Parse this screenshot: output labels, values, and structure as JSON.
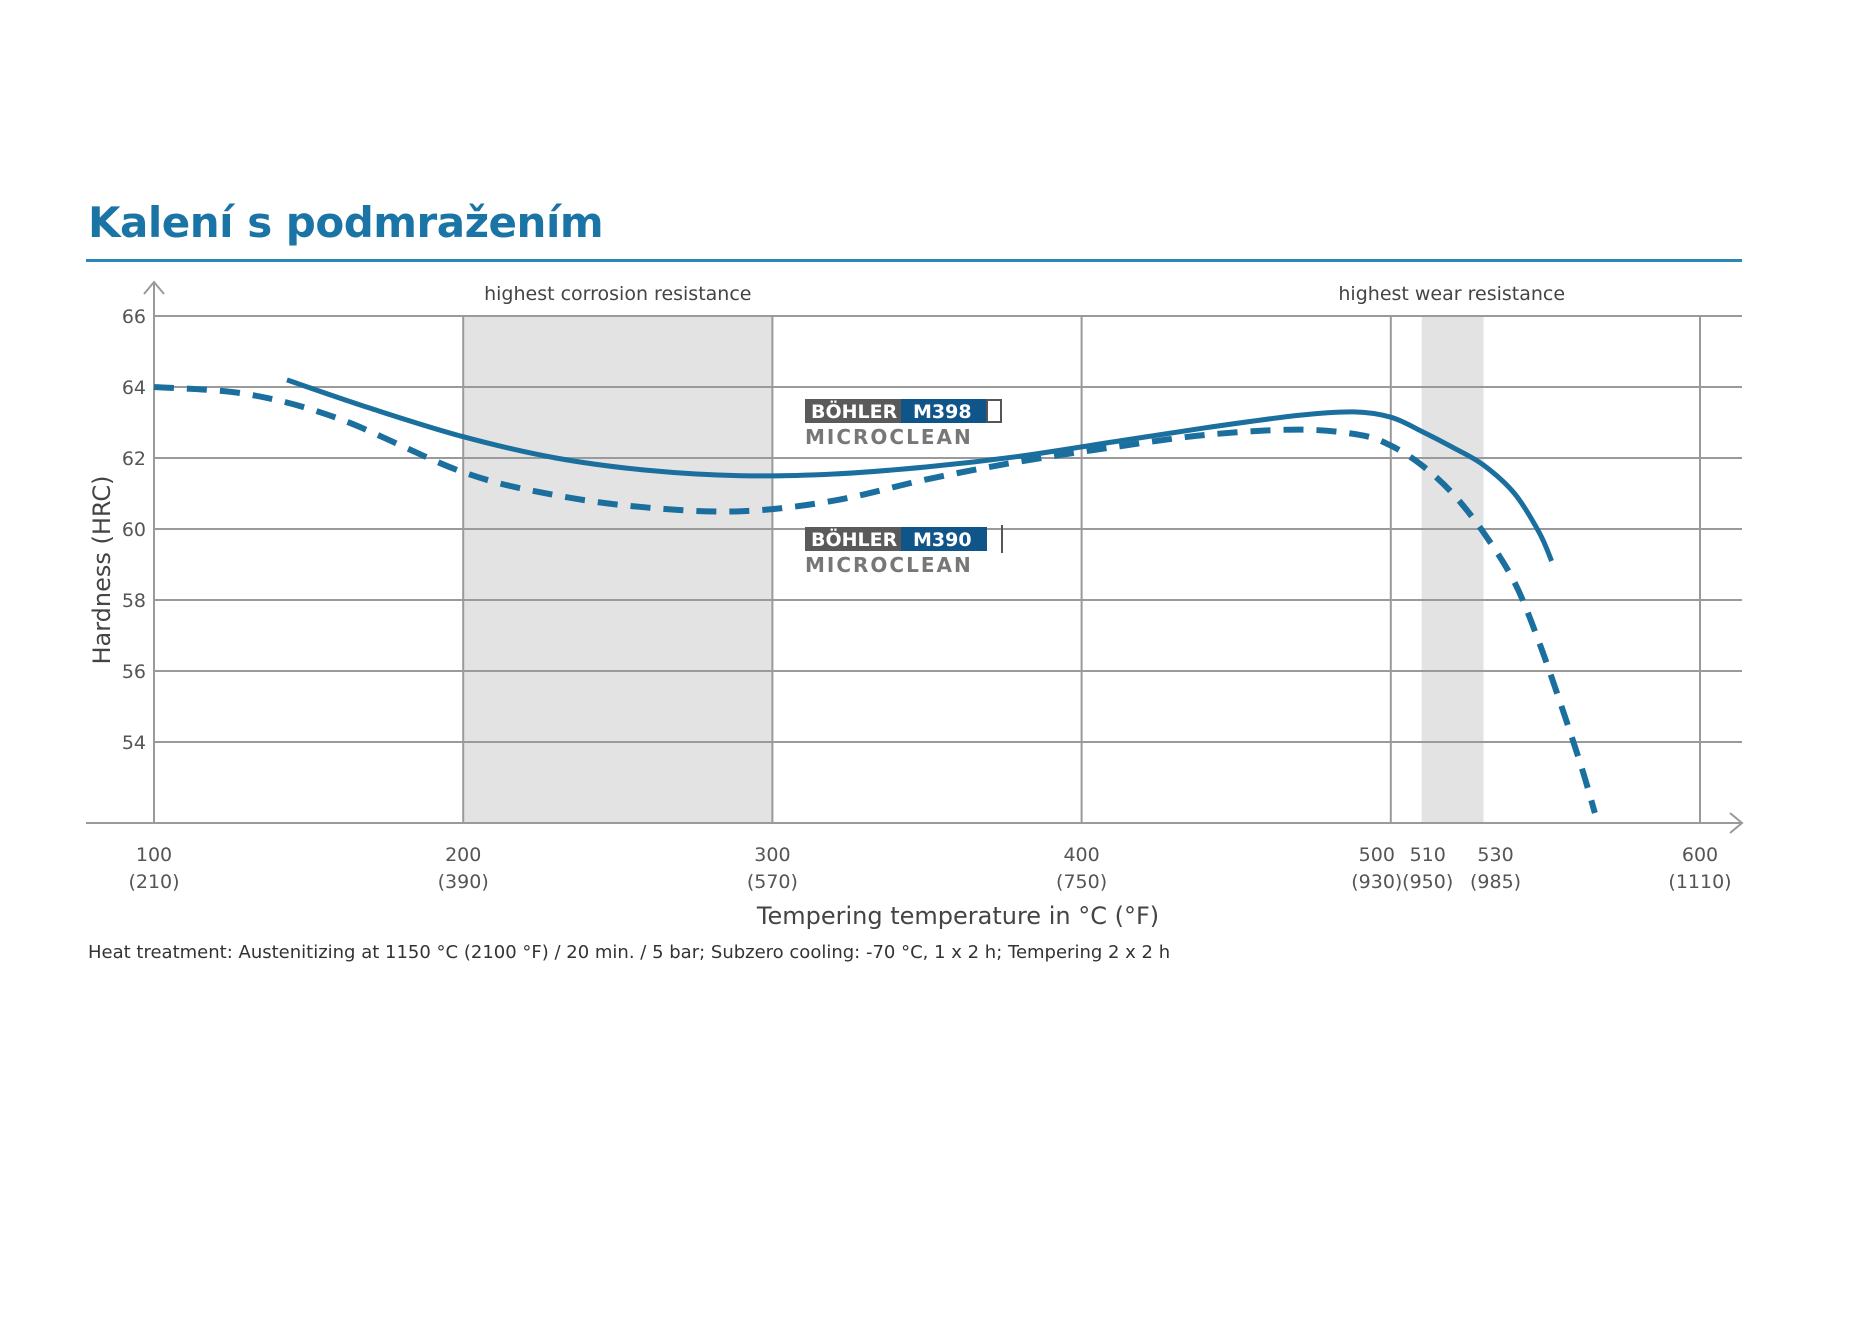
{
  "title": "Kalení s podmražením",
  "note": "Heat treatment: Austenitizing at 1150 °C (2100 °F) / 20 min. / 5 bar; Subzero cooling: -70 °C, 1 x 2 h; Tempering 2 x 2 h",
  "colors": {
    "title": "#1b74a6",
    "curve": "#1b6f9e",
    "band": "#e3e3e3",
    "grid": "#9a9a9a",
    "logo_gray": "#5a5a5a",
    "logo_blue": "#0f5589"
  },
  "chart_data": {
    "type": "line",
    "xlabel": "Tempering temperature in °C (°F)",
    "ylabel": "Hardness (HRC)",
    "xlim": [
      100,
      610
    ],
    "ylim": [
      52,
      66
    ],
    "grid": true,
    "x_ticks": [
      {
        "value": 100,
        "label": "100",
        "sub": "(210)"
      },
      {
        "value": 200,
        "label": "200",
        "sub": "(390)"
      },
      {
        "value": 300,
        "label": "300",
        "sub": "(570)"
      },
      {
        "value": 400,
        "label": "400",
        "sub": "(750)"
      },
      {
        "value": 500,
        "label": "500",
        "sub": "(930)"
      },
      {
        "value": 510,
        "label": "510",
        "sub": "(950)"
      },
      {
        "value": 530,
        "label": "530",
        "sub": "(985)"
      },
      {
        "value": 600,
        "label": "600",
        "sub": "(1110)"
      }
    ],
    "y_ticks": [
      54,
      56,
      58,
      60,
      62,
      64,
      66
    ],
    "bands": [
      {
        "from": 200,
        "to": 300,
        "label": "highest corrosion resistance"
      },
      {
        "from": 510,
        "to": 530,
        "label": "highest wear resistance"
      }
    ],
    "series": [
      {
        "name": "BÖHLER M398 MICROCLEAN",
        "style": "solid",
        "x": [
          143,
          170,
          200,
          230,
          260,
          290,
          320,
          350,
          380,
          410,
          440,
          470,
          488,
          500,
          510,
          520,
          530,
          540,
          548,
          552
        ],
        "y": [
          64.2,
          63.4,
          62.6,
          62.0,
          61.65,
          61.5,
          61.55,
          61.75,
          62.05,
          62.45,
          62.85,
          63.2,
          63.3,
          63.15,
          62.75,
          62.3,
          61.8,
          61.0,
          59.9,
          59.1
        ]
      },
      {
        "name": "BÖHLER M390 MICROCLEAN",
        "style": "dashed",
        "x": [
          100,
          130,
          160,
          200,
          230,
          260,
          290,
          320,
          350,
          380,
          410,
          440,
          470,
          490,
          500,
          510,
          520,
          530,
          540,
          548,
          556,
          562,
          566
        ],
        "y": [
          64.0,
          63.8,
          63.1,
          61.6,
          60.95,
          60.6,
          60.5,
          60.8,
          61.4,
          61.9,
          62.3,
          62.65,
          62.8,
          62.65,
          62.35,
          61.8,
          61.0,
          59.9,
          58.5,
          56.8,
          54.8,
          53.2,
          52.0
        ]
      }
    ],
    "legend": [
      {
        "brand": "BÖHLER",
        "grade": "M398",
        "sub": "MICROCLEAN"
      },
      {
        "brand": "BÖHLER",
        "grade": "M390",
        "sub": "MICROCLEAN"
      }
    ]
  }
}
